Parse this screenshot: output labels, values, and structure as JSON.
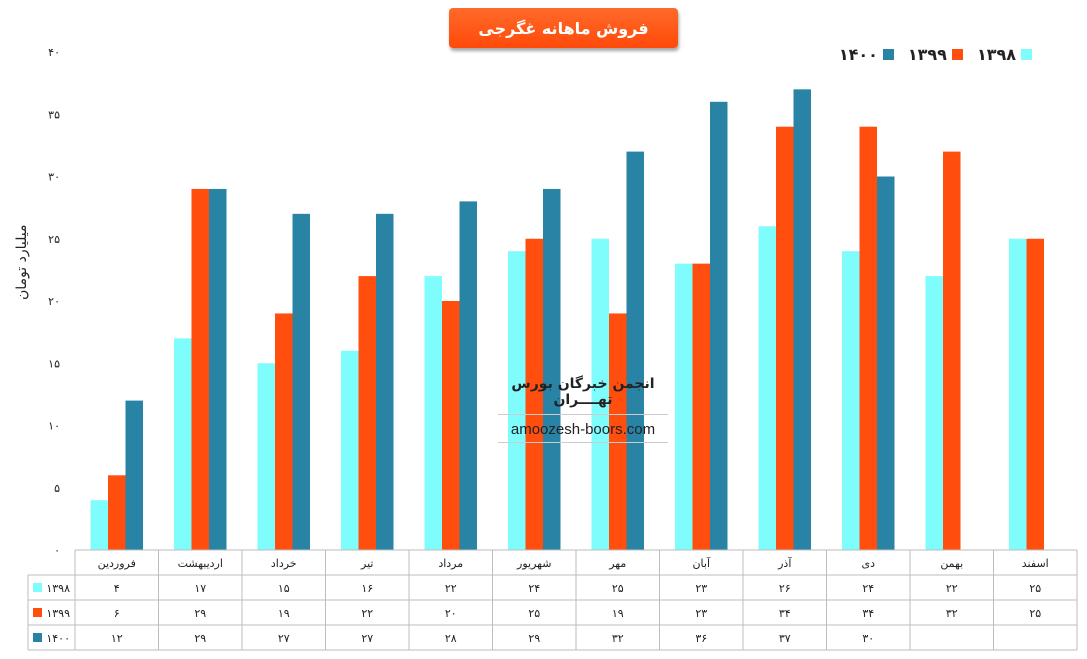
{
  "chart_data": {
    "type": "bar",
    "title": "فروش ماهانه غگرجی",
    "ylabel": "میلیارد تومان",
    "ylim": [
      0,
      40
    ],
    "y_ticks": [
      "۰",
      "۵",
      "۱۰",
      "۱۵",
      "۲۰",
      "۲۵",
      "۳۰",
      "۳۵",
      "۴۰"
    ],
    "categories": [
      "فروردین",
      "اردیبهشت",
      "خرداد",
      "تیر",
      "مرداد",
      "شهریور",
      "مهر",
      "آبان",
      "آذر",
      "دی",
      "بهمن",
      "اسفند"
    ],
    "series": [
      {
        "name": "۱۳۹۸",
        "color": "#7ffcfc",
        "values": [
          4,
          17,
          15,
          16,
          22,
          24,
          25,
          23,
          26,
          24,
          22,
          25
        ],
        "labels": [
          "۴",
          "۱۷",
          "۱۵",
          "۱۶",
          "۲۲",
          "۲۴",
          "۲۵",
          "۲۳",
          "۲۶",
          "۲۴",
          "۲۲",
          "۲۵"
        ]
      },
      {
        "name": "۱۳۹۹",
        "color": "#ff4e0e",
        "values": [
          6,
          29,
          19,
          22,
          20,
          25,
          19,
          23,
          34,
          34,
          32,
          25
        ],
        "labels": [
          "۶",
          "۲۹",
          "۱۹",
          "۲۲",
          "۲۰",
          "۲۵",
          "۱۹",
          "۲۳",
          "۳۴",
          "۳۴",
          "۳۲",
          "۲۵"
        ]
      },
      {
        "name": "۱۴۰۰",
        "color": "#2883a4",
        "values": [
          12,
          29,
          27,
          27,
          28,
          29,
          32,
          36,
          37,
          30,
          null,
          null
        ],
        "labels": [
          "۱۲",
          "۲۹",
          "۲۷",
          "۲۷",
          "۲۸",
          "۲۹",
          "۳۲",
          "۳۶",
          "۳۷",
          "۳۰",
          "",
          ""
        ]
      }
    ],
    "legend": "top-right",
    "grid": false,
    "data_table": true
  },
  "watermark": {
    "line1": "انجمن خبرگان بورس تهــــران",
    "line2": "amoozesh-boors.com"
  }
}
